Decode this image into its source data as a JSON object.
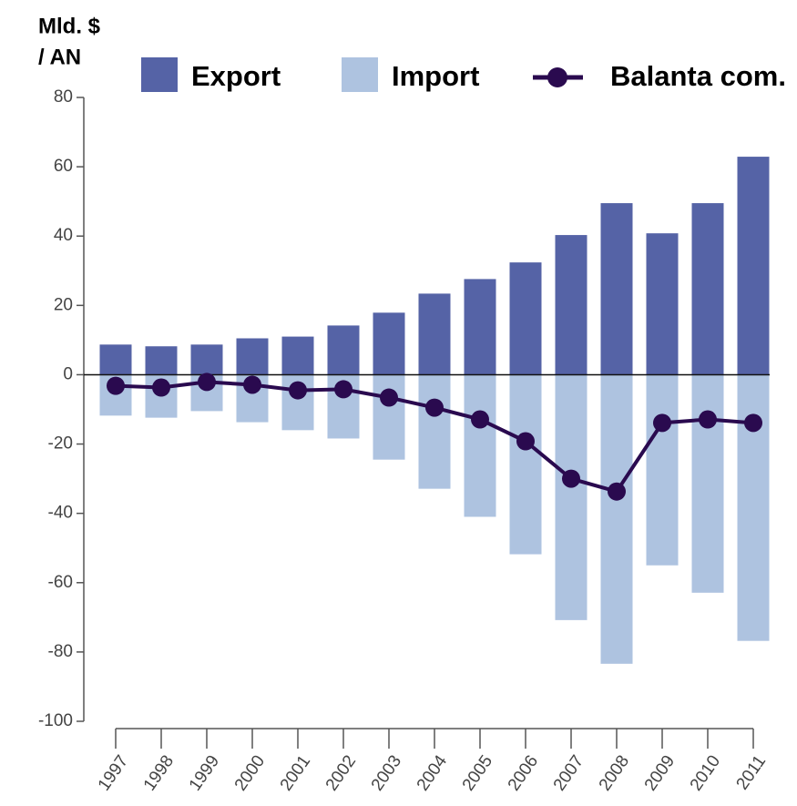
{
  "chart_data": {
    "type": "bar",
    "ylabel_lines": [
      "Mld. $",
      "/ AN"
    ],
    "categories": [
      "1997",
      "1998",
      "1999",
      "2000",
      "2001",
      "2002",
      "2003",
      "2004",
      "2005",
      "2006",
      "2007",
      "2008",
      "2009",
      "2010",
      "2011"
    ],
    "series": [
      {
        "name": "Export",
        "type": "bar",
        "color": "#5563a6",
        "values": [
          8.7,
          8.2,
          8.7,
          10.5,
          11,
          14.2,
          17.9,
          23.4,
          27.6,
          32.4,
          40.3,
          49.5,
          40.8,
          49.5,
          62.9
        ]
      },
      {
        "name": "Import",
        "type": "bar",
        "color": "#aec3e0",
        "values": [
          -11.8,
          -12.4,
          -10.5,
          -13.7,
          -16,
          -18.4,
          -24.5,
          -32.9,
          -41,
          -51.8,
          -70.8,
          -83.4,
          -55,
          -62.9,
          -76.8
        ]
      },
      {
        "name": "Balanta com.",
        "type": "line",
        "color": "#2a0a4f",
        "values": [
          -3.2,
          -3.7,
          -2.1,
          -2.9,
          -4.5,
          -4.2,
          -6.6,
          -9.5,
          -12.9,
          -19.2,
          -30,
          -33.7,
          -13.9,
          -12.9,
          -13.9
        ]
      }
    ],
    "ylim": [
      -100,
      80
    ],
    "yticks": [
      -100,
      -80,
      -60,
      -40,
      -20,
      0,
      20,
      40,
      60,
      80
    ]
  }
}
